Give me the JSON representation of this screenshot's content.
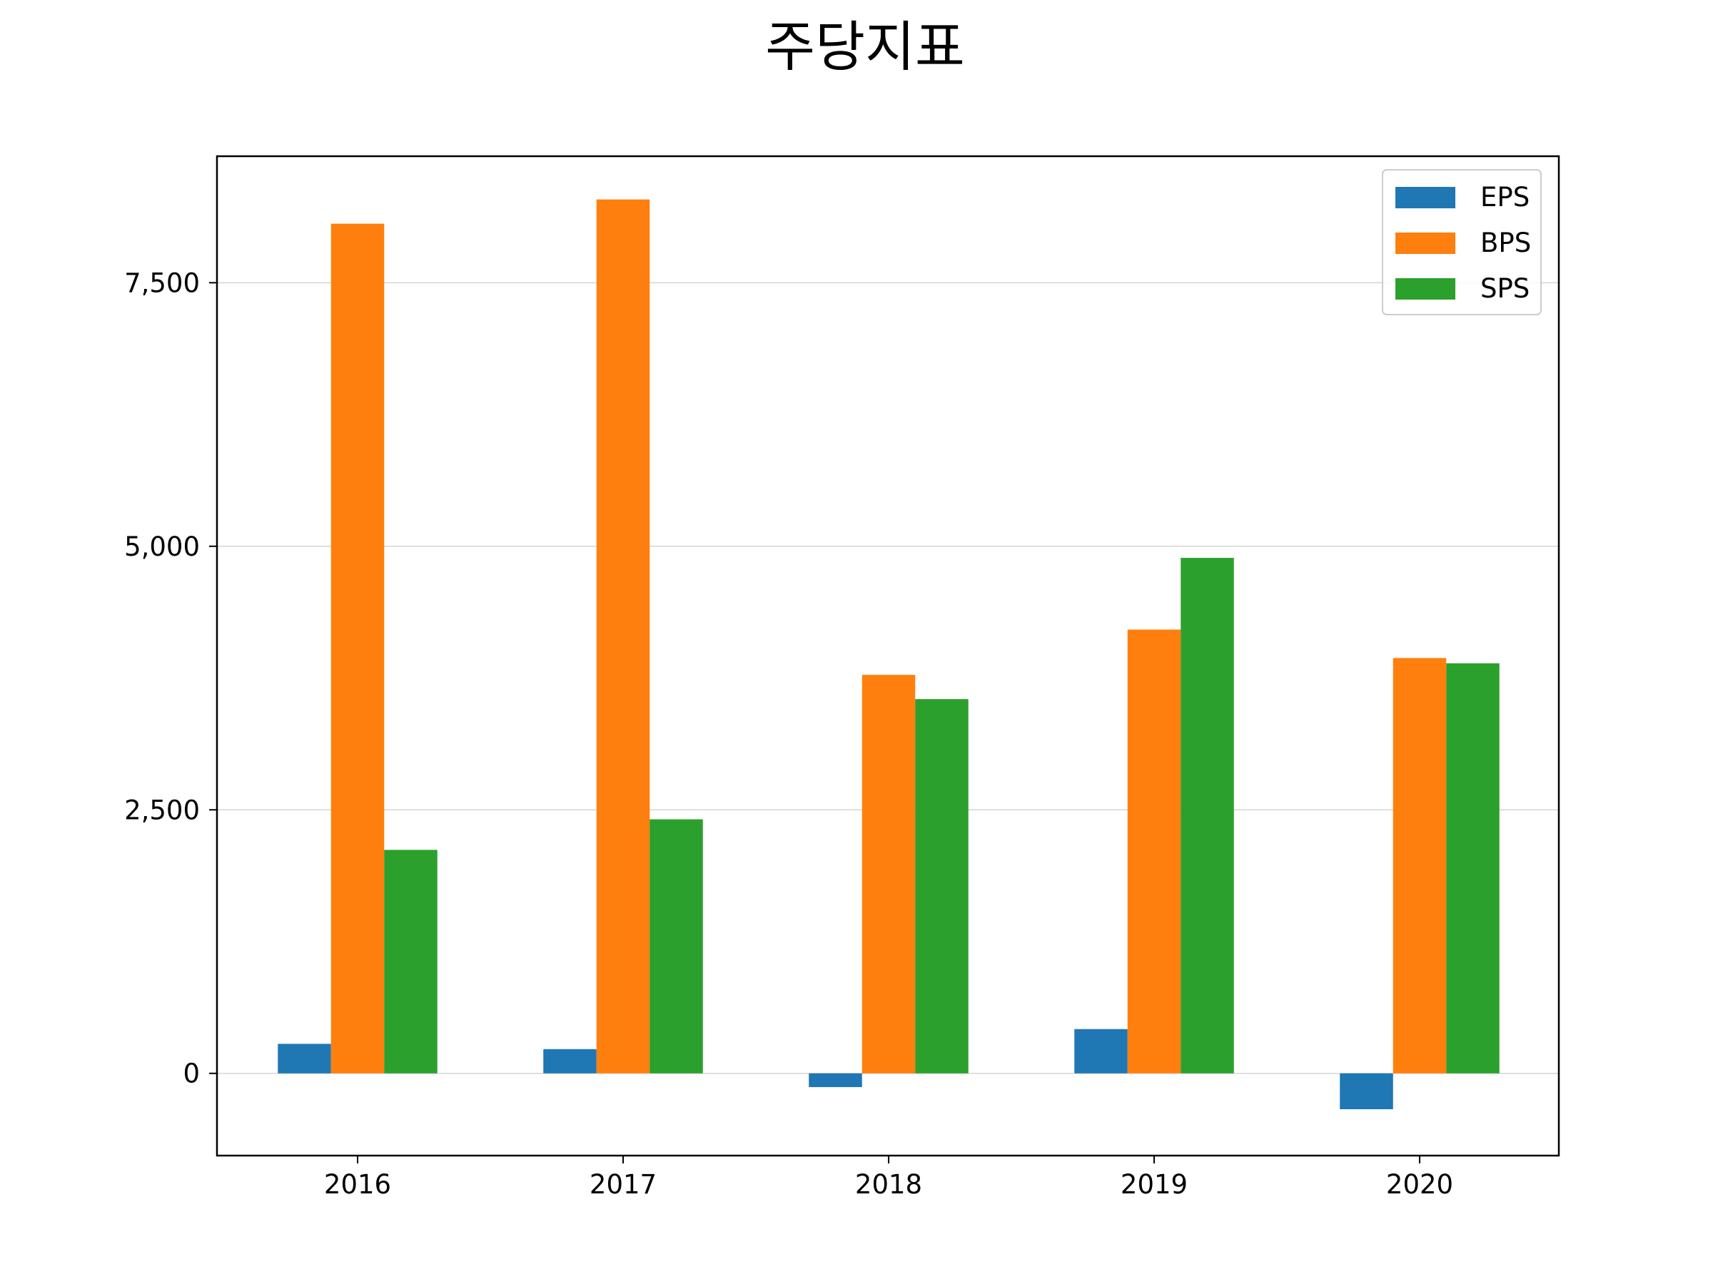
{
  "chart_data": {
    "type": "bar",
    "title": "주당지표",
    "xlabel": "",
    "ylabel": "",
    "categories": [
      "2016",
      "2017",
      "2018",
      "2019",
      "2020"
    ],
    "series": [
      {
        "name": "EPS",
        "color": "#1f77b4",
        "values": [
          280,
          230,
          -130,
          420,
          -340
        ]
      },
      {
        "name": "BPS",
        "color": "#ff7f0e",
        "values": [
          8060,
          8290,
          3780,
          4210,
          3940
        ]
      },
      {
        "name": "SPS",
        "color": "#2ca02c",
        "values": [
          2120,
          2410,
          3550,
          4890,
          3890
        ]
      }
    ],
    "ylim": [
      -780,
      8700
    ],
    "yticks": [
      0,
      2500,
      5000,
      7500
    ],
    "ytick_labels": [
      "0",
      "2,500",
      "5,000",
      "7,500"
    ],
    "grid": {
      "y": true,
      "x": false
    },
    "legend_position": "top-right"
  }
}
